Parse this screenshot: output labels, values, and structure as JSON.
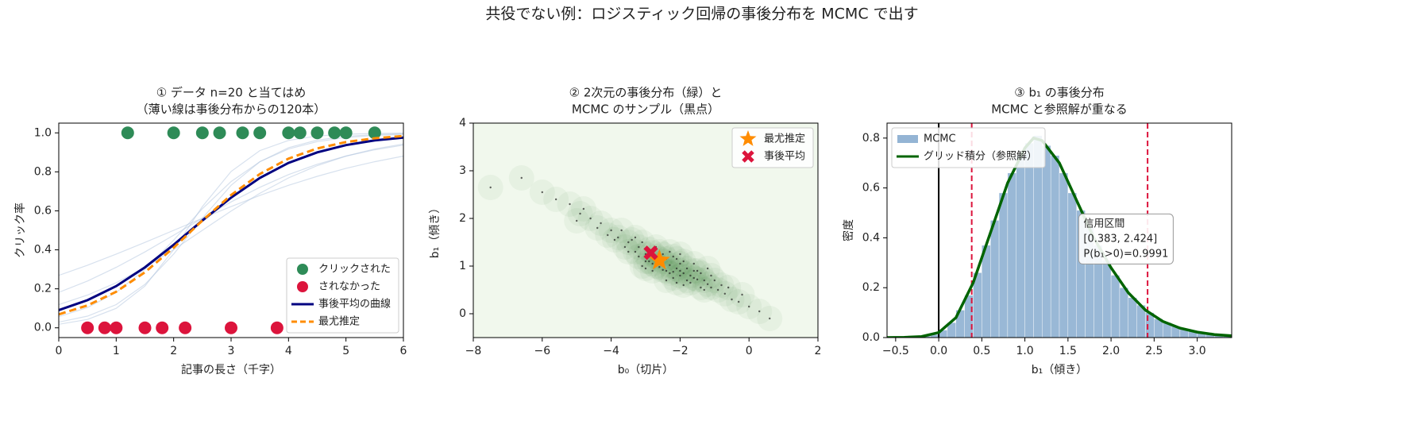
{
  "title": "共役でない例：ロジスティック回帰の事後分布を MCMC で出す",
  "chart_data": [
    {
      "type": "line",
      "title": [
        "① データ n=20 と当てはめ",
        "（薄い線は事後分布からの120本）"
      ],
      "xlabel": "記事の長さ（千字）",
      "ylabel": "クリック率",
      "x": [
        0,
        0.5,
        1,
        1.5,
        2,
        2.5,
        3,
        3.5,
        4,
        4.5,
        5,
        5.5,
        6
      ],
      "sample_curves": {
        "color": "#b0c4de",
        "values": [
          [
            0.182,
            0.24,
            0.31,
            0.389,
            0.475,
            0.562,
            0.646,
            0.721,
            0.786,
            0.839,
            0.881,
            0.913,
            0.937
          ],
          [
            0.029,
            0.06,
            0.119,
            0.223,
            0.378,
            0.562,
            0.731,
            0.852,
            0.924,
            0.963,
            0.982,
            0.991,
            0.996
          ],
          [
            0.269,
            0.321,
            0.378,
            0.438,
            0.5,
            0.562,
            0.622,
            0.679,
            0.731,
            0.777,
            0.818,
            0.852,
            0.881
          ],
          [
            0.057,
            0.104,
            0.182,
            0.299,
            0.45,
            0.611,
            0.75,
            0.852,
            0.917,
            0.955,
            0.976,
            0.987,
            0.993
          ],
          [
            0.119,
            0.168,
            0.231,
            0.31,
            0.401,
            0.5,
            0.599,
            0.69,
            0.769,
            0.832,
            0.881,
            0.917,
            0.943
          ],
          [
            0.018,
            0.043,
            0.1,
            0.214,
            0.401,
            0.622,
            0.802,
            0.909,
            0.961,
            0.984,
            0.993,
            0.997,
            0.999
          ]
        ]
      },
      "series": [
        {
          "name": "クリックされた",
          "color": "#2e8b57",
          "style": "point",
          "x": [
            1.2,
            2.0,
            2.5,
            2.8,
            3.2,
            3.5,
            4.0,
            4.2,
            4.5,
            4.8,
            5.0,
            5.5
          ],
          "values": [
            1,
            1,
            1,
            1,
            1,
            1,
            1,
            1,
            1,
            1,
            1,
            1
          ]
        },
        {
          "name": "されなかった",
          "color": "#dc143c",
          "style": "point",
          "x": [
            0.5,
            0.8,
            1.0,
            1.5,
            1.8,
            2.2,
            3.0,
            3.8
          ],
          "values": [
            0,
            0,
            0,
            0,
            0,
            0,
            0,
            0
          ]
        },
        {
          "name": "事後平均の曲線",
          "color": "#000080",
          "style": "solid",
          "values": [
            0.091,
            0.142,
            0.214,
            0.31,
            0.426,
            0.55,
            0.668,
            0.769,
            0.846,
            0.9,
            0.937,
            0.961,
            0.976
          ]
        },
        {
          "name": "最尤推定",
          "color": "#ff8c00",
          "style": "dashed",
          "values": [
            0.069,
            0.115,
            0.185,
            0.285,
            0.411,
            0.55,
            0.681,
            0.789,
            0.868,
            0.92,
            0.953,
            0.972,
            0.984
          ]
        }
      ],
      "xlim": [
        0,
        6
      ],
      "xticks": [
        0,
        1,
        2,
        3,
        4,
        5,
        6
      ],
      "ylim": [
        -0.05,
        1.05
      ],
      "yticks": [
        {
          "value": 0,
          "label": "0.0"
        },
        0.2,
        0.4,
        0.6,
        0.8,
        {
          "value": 1,
          "label": "1.0"
        }
      ],
      "legend": "lower right"
    },
    {
      "type": "scatter",
      "title": [
        "② 2次元の事後分布（緑）と",
        "MCMC のサンプル（黒点）"
      ],
      "xlabel": "b₀（切片）",
      "ylabel": "b₁（傾き）",
      "background": "#f1f8ed",
      "density_color": "#1f7a1f",
      "samples": {
        "color": "#222222",
        "x": [
          -2.3,
          -2.1,
          -2.5,
          -1.9,
          -2.7,
          -2.0,
          -2.6,
          -1.7,
          -3.0,
          -2.2,
          -1.5,
          -3.2,
          -2.4,
          -1.8,
          -2.8,
          -1.3,
          -3.5,
          -2.9,
          -1.6,
          -2.5,
          -1.1,
          -3.8,
          -2.2,
          -2.0,
          -3.3,
          -1.4,
          -2.7,
          -1.9,
          -3.1,
          -2.3,
          -0.9,
          -4.0,
          -2.6,
          -1.7,
          -3.6,
          -1.2,
          -2.1,
          -2.9,
          -4.3,
          -0.7,
          -2.4,
          -1.6,
          -3.4,
          -2.0,
          -2.8,
          -1.0,
          -3.9,
          -0.5,
          -4.6,
          -2.2,
          -1.8,
          -2.5,
          -3.0,
          -1.5,
          -3.7,
          -0.3,
          -4.9,
          -2.6,
          -1.3,
          -3.2,
          -5.2,
          0.0,
          -2.3,
          -1.9,
          -4.1,
          -0.8,
          -3.3,
          -2.7,
          -5.6,
          0.3,
          -2.0,
          -1.1,
          -4.4,
          -2.8,
          -1.4,
          -3.5,
          -6.0,
          0.6,
          -2.4,
          -1.6,
          -4.8,
          -0.6,
          -3.1,
          -2.1,
          -5.0,
          -0.2,
          -6.6,
          -7.5,
          -3.0,
          -1.2
        ],
        "values": [
          1.02,
          0.95,
          1.1,
          0.85,
          1.2,
          1.05,
          0.98,
          0.8,
          1.25,
          0.88,
          0.72,
          1.4,
          1.15,
          0.95,
          1.05,
          0.7,
          1.5,
          1.35,
          0.9,
          0.92,
          0.55,
          1.6,
          1.2,
          0.8,
          1.3,
          0.85,
          1.0,
          1.1,
          1.5,
          0.85,
          0.5,
          1.75,
          1.3,
          0.65,
          1.4,
          0.62,
          1.15,
          1.1,
          1.9,
          0.42,
          0.9,
          0.75,
          1.55,
          0.9,
          1.28,
          0.7,
          1.55,
          0.3,
          2.0,
          0.75,
          0.7,
          1.25,
          1.1,
          0.9,
          1.75,
          0.25,
          2.1,
          1.15,
          0.5,
          1.2,
          2.3,
          0.15,
          1.3,
          0.6,
          1.65,
          0.6,
          1.6,
          1.4,
          2.4,
          0.05,
          1.25,
          0.8,
          1.8,
          0.9,
          0.55,
          1.3,
          2.55,
          -0.1,
          0.7,
          1.05,
          2.2,
          0.55,
          1.0,
          0.65,
          1.95,
          0.4,
          2.85,
          2.65,
          0.95,
          0.95
        ]
      },
      "markers": [
        {
          "name": "最尤推定",
          "color": "#ff8c00",
          "marker": "star",
          "x": -2.6,
          "value": 1.12
        },
        {
          "name": "事後平均",
          "color": "#dc143c",
          "marker": "x",
          "x": -2.85,
          "value": 1.28
        }
      ],
      "xlim": [
        -8,
        2
      ],
      "xticks": [
        {
          "value": -8,
          "label": "−8"
        },
        {
          "value": -6,
          "label": "−6"
        },
        {
          "value": -4,
          "label": "−4"
        },
        {
          "value": -2,
          "label": "−2"
        },
        0,
        2
      ],
      "ylim": [
        -0.5,
        4
      ],
      "yticks": [
        0,
        1,
        2,
        3,
        4
      ],
      "legend": "upper right"
    },
    {
      "type": "histogram",
      "title": [
        "③ b₁ の事後分布",
        "MCMC と参照解が重なる"
      ],
      "xlabel": "b₁（傾き）",
      "ylabel": "密度",
      "histogram": {
        "name": "MCMC",
        "color": "#94b4d4",
        "bins": [
          -0.4,
          -0.3,
          -0.2,
          -0.1,
          0.0,
          0.1,
          0.2,
          0.3,
          0.4,
          0.5,
          0.6,
          0.7,
          0.8,
          0.9,
          1.0,
          1.1,
          1.2,
          1.3,
          1.4,
          1.5,
          1.6,
          1.7,
          1.8,
          1.9,
          2.0,
          2.1,
          2.2,
          2.3,
          2.4,
          2.5,
          2.6,
          2.7,
          2.8,
          2.9,
          3.0,
          3.1,
          3.2,
          3.3,
          3.4
        ],
        "counts": [
          0.002,
          0.003,
          0.006,
          0.012,
          0.03,
          0.06,
          0.11,
          0.17,
          0.26,
          0.37,
          0.47,
          0.58,
          0.66,
          0.73,
          0.78,
          0.81,
          0.77,
          0.73,
          0.66,
          0.58,
          0.51,
          0.44,
          0.37,
          0.31,
          0.25,
          0.2,
          0.16,
          0.13,
          0.1,
          0.075,
          0.06,
          0.045,
          0.035,
          0.026,
          0.02,
          0.014,
          0.01,
          0.008
        ]
      },
      "series": [
        {
          "name": "グリッド積分（参照解）",
          "color": "#006400",
          "x": [
            -0.6,
            -0.4,
            -0.2,
            0,
            0.2,
            0.4,
            0.6,
            0.8,
            1.0,
            1.1,
            1.2,
            1.4,
            1.6,
            1.8,
            2.0,
            2.2,
            2.4,
            2.6,
            2.8,
            3.0,
            3.2,
            3.4
          ],
          "values": [
            0,
            0.001,
            0.004,
            0.02,
            0.08,
            0.22,
            0.42,
            0.62,
            0.76,
            0.8,
            0.79,
            0.7,
            0.55,
            0.4,
            0.28,
            0.18,
            0.11,
            0.065,
            0.038,
            0.022,
            0.012,
            0.007
          ]
        }
      ],
      "vlines": [
        {
          "value": 0,
          "color": "#000000",
          "style": "solid"
        },
        {
          "value": 0.383,
          "color": "#dc143c",
          "style": "dashed"
        },
        {
          "value": 2.424,
          "color": "#dc143c",
          "style": "dashed"
        }
      ],
      "annotation": [
        "信用区間",
        "[0.383, 2.424]",
        "P(b₁>0)=0.9991"
      ],
      "xlim": [
        -0.6,
        3.4
      ],
      "xticks": [
        {
          "value": -0.5,
          "label": "−0.5"
        },
        {
          "value": 0,
          "label": "0.0"
        },
        0.5,
        {
          "value": 1,
          "label": "1.0"
        },
        1.5,
        {
          "value": 2,
          "label": "2.0"
        },
        2.5,
        {
          "value": 3,
          "label": "3.0"
        }
      ],
      "ylim": [
        0,
        0.86
      ],
      "yticks": [
        {
          "value": 0,
          "label": "0.0"
        },
        0.2,
        0.4,
        0.6,
        0.8
      ],
      "legend": "upper left"
    }
  ]
}
